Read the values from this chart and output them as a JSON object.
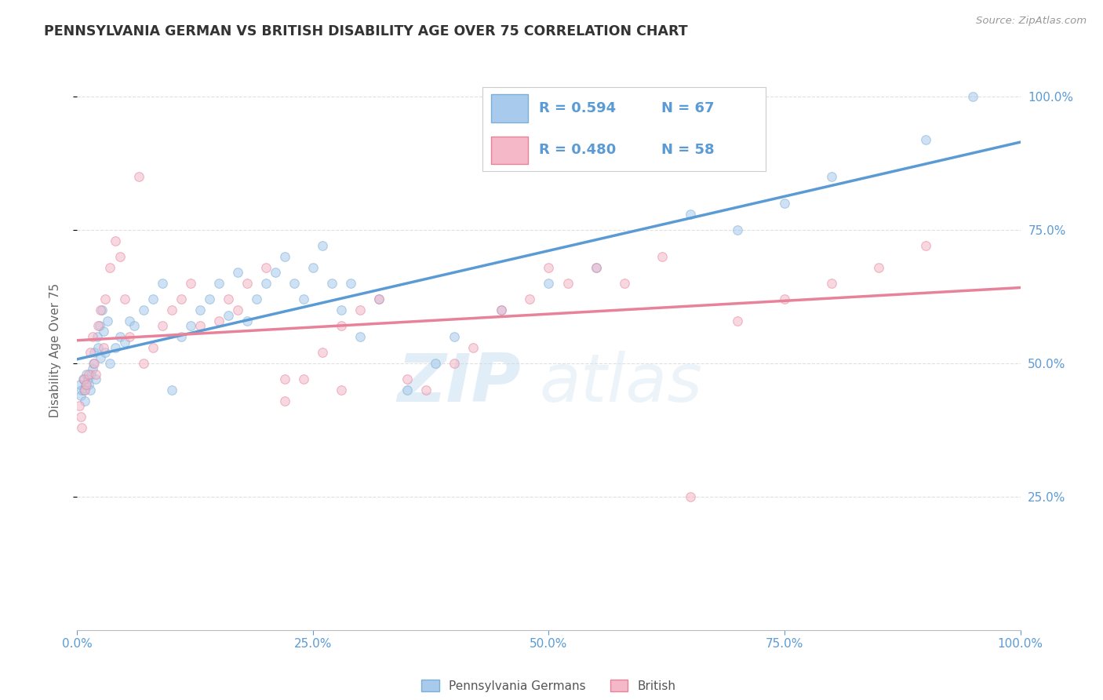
{
  "title": "PENNSYLVANIA GERMAN VS BRITISH DISABILITY AGE OVER 75 CORRELATION CHART",
  "source": "Source: ZipAtlas.com",
  "ylabel": "Disability Age Over 75",
  "watermark_zip": "ZIP",
  "watermark_atlas": "atlas",
  "series1_color": "#A8CAED",
  "series2_color": "#F4B8C8",
  "series1_edge_color": "#7BAFD4",
  "series2_edge_color": "#E8829A",
  "series1_line_color": "#5B9BD5",
  "series2_line_color": "#E8829A",
  "series1_label": "Pennsylvania Germans",
  "series2_label": "British",
  "series1_R": "0.594",
  "series1_N": "67",
  "series2_R": "0.480",
  "series2_N": "58",
  "legend_color": "#5B9BD5",
  "axis_label_color": "#5B9BD5",
  "title_color": "#333333",
  "grid_color": "#DDDDDD",
  "bg_color": "#FFFFFF",
  "series1_x": [
    0.3,
    0.4,
    0.5,
    0.6,
    0.7,
    0.8,
    0.9,
    1.0,
    1.1,
    1.2,
    1.4,
    1.5,
    1.6,
    1.7,
    1.8,
    2.0,
    2.1,
    2.2,
    2.4,
    2.5,
    2.6,
    2.8,
    3.0,
    3.2,
    3.5,
    4.0,
    4.5,
    5.0,
    5.5,
    6.0,
    7.0,
    8.0,
    9.0,
    10.0,
    11.0,
    12.0,
    13.0,
    14.0,
    15.0,
    16.0,
    17.0,
    18.0,
    19.0,
    20.0,
    21.0,
    22.0,
    23.0,
    24.0,
    25.0,
    26.0,
    27.0,
    28.0,
    29.0,
    30.0,
    32.0,
    35.0,
    38.0,
    40.0,
    45.0,
    50.0,
    55.0,
    65.0,
    70.0,
    75.0,
    80.0,
    90.0,
    95.0
  ],
  "series1_y": [
    46,
    44,
    45,
    47,
    45,
    43,
    46,
    48,
    47,
    46,
    45,
    48,
    49,
    50,
    52,
    47,
    55,
    53,
    57,
    51,
    60,
    56,
    52,
    58,
    50,
    53,
    55,
    54,
    58,
    57,
    60,
    62,
    65,
    45,
    55,
    57,
    60,
    62,
    65,
    59,
    67,
    58,
    62,
    65,
    67,
    70,
    65,
    62,
    68,
    72,
    65,
    60,
    65,
    55,
    62,
    45,
    50,
    55,
    60,
    65,
    68,
    78,
    75,
    80,
    85,
    92,
    100
  ],
  "series2_x": [
    0.2,
    0.4,
    0.5,
    0.7,
    0.8,
    1.0,
    1.2,
    1.4,
    1.6,
    1.8,
    2.0,
    2.2,
    2.5,
    2.8,
    3.0,
    3.5,
    4.0,
    4.5,
    5.0,
    5.5,
    6.5,
    7.0,
    8.0,
    9.0,
    10.0,
    11.0,
    12.0,
    13.0,
    15.0,
    16.0,
    17.0,
    18.0,
    20.0,
    22.0,
    24.0,
    26.0,
    28.0,
    30.0,
    32.0,
    35.0,
    37.0,
    40.0,
    42.0,
    45.0,
    48.0,
    50.0,
    52.0,
    55.0,
    58.0,
    62.0,
    65.0,
    70.0,
    75.0,
    80.0,
    85.0,
    90.0,
    22.0,
    28.0
  ],
  "series2_y": [
    42,
    40,
    38,
    47,
    45,
    46,
    48,
    52,
    55,
    50,
    48,
    57,
    60,
    53,
    62,
    68,
    73,
    70,
    62,
    55,
    85,
    50,
    53,
    57,
    60,
    62,
    65,
    57,
    58,
    62,
    60,
    65,
    68,
    43,
    47,
    52,
    57,
    60,
    62,
    47,
    45,
    50,
    53,
    60,
    62,
    68,
    65,
    68,
    65,
    70,
    25,
    58,
    62,
    65,
    68,
    72,
    47,
    45
  ],
  "xlim": [
    0,
    100
  ],
  "ylim": [
    0,
    105
  ],
  "scatter_size": 70,
  "scatter_alpha": 0.55,
  "scatter_linewidth": 0.8
}
